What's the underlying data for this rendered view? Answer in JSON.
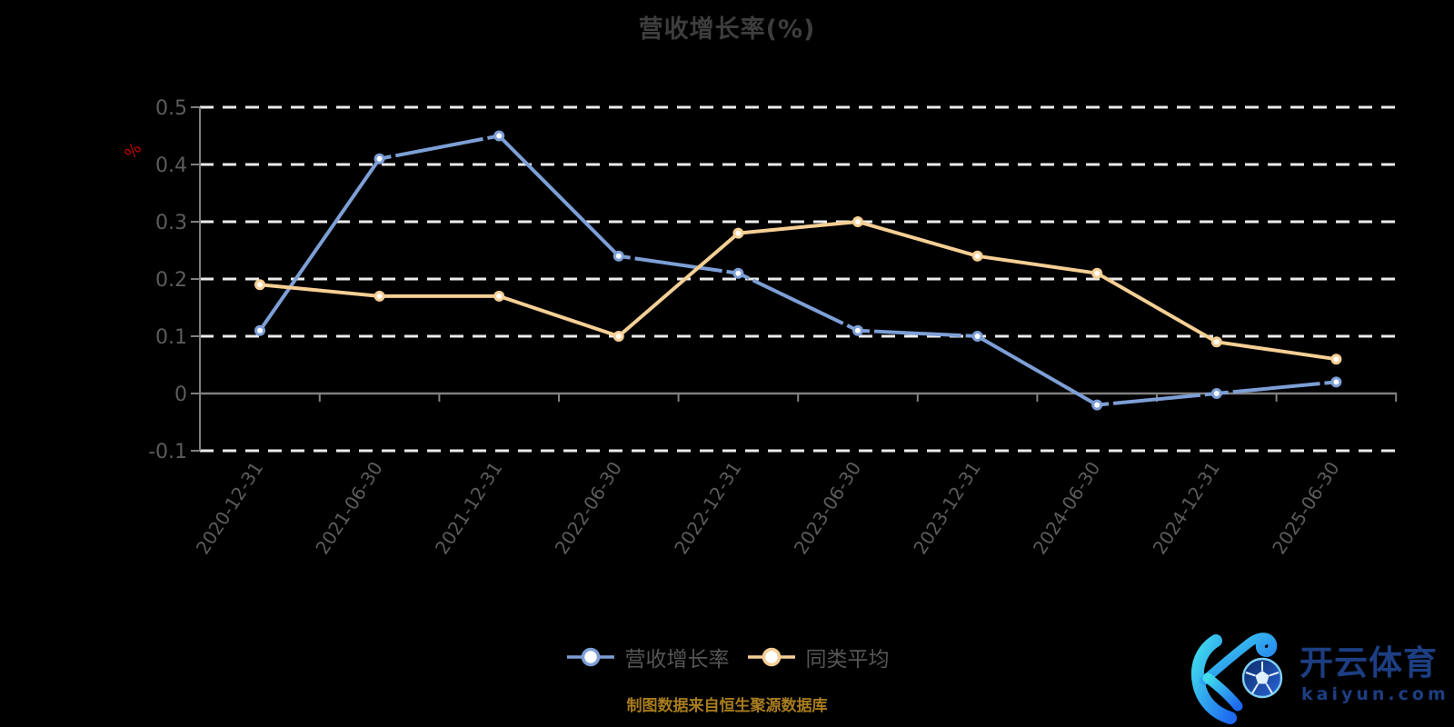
{
  "title": "营收增长率(%)",
  "footer": {
    "source_note": "制图数据来自恒生聚源数据库"
  },
  "logo": {
    "brand_cn": "开云体育",
    "brand_domain": "kaiyun.com"
  },
  "colors": {
    "background": "#000000",
    "title_text": "#3d3d3d",
    "axis_line": "#808080",
    "axis_label": "#5c5c5c",
    "grid_dash": "#ebebeb",
    "legend_text": "#555555",
    "y_unit_red": "#c40000",
    "footer_gold": "#a87c1e",
    "series_blue": "#7d9fd6",
    "series_yellow": "#f5cf94",
    "marker_fill": "#ffffff",
    "logo_navy": "#1d3e82",
    "logo_gradient_from": "#41dcec",
    "logo_gradient_to": "#1e6af0"
  },
  "chart_data": {
    "type": "line",
    "title": "营收增长率(%)",
    "xlabel": "",
    "ylabel": "%",
    "ylim": [
      -0.1,
      0.5
    ],
    "y_ticks": [
      0.5,
      0.4,
      0.3,
      0.2,
      0.1,
      0,
      -0.1
    ],
    "grid": "horizontal dashed white lines, solid axis line at zero",
    "legend_position": "bottom center",
    "categories": [
      "2020-12-31",
      "2021-06-30",
      "2021-12-31",
      "2022-06-30",
      "2022-12-31",
      "2023-06-30",
      "2023-12-31",
      "2024-06-30",
      "2024-12-31",
      "2025-06-30"
    ],
    "series": [
      {
        "name": "营收增长率",
        "color": "#7d9fd6",
        "values": [
          0.11,
          0.41,
          0.45,
          0.24,
          0.21,
          0.11,
          0.1,
          -0.02,
          0.0,
          0.02
        ]
      },
      {
        "name": "同类平均",
        "color": "#f5cf94",
        "values": [
          0.19,
          0.17,
          0.17,
          0.1,
          0.28,
          0.3,
          0.24,
          0.21,
          0.09,
          0.06
        ]
      }
    ]
  }
}
